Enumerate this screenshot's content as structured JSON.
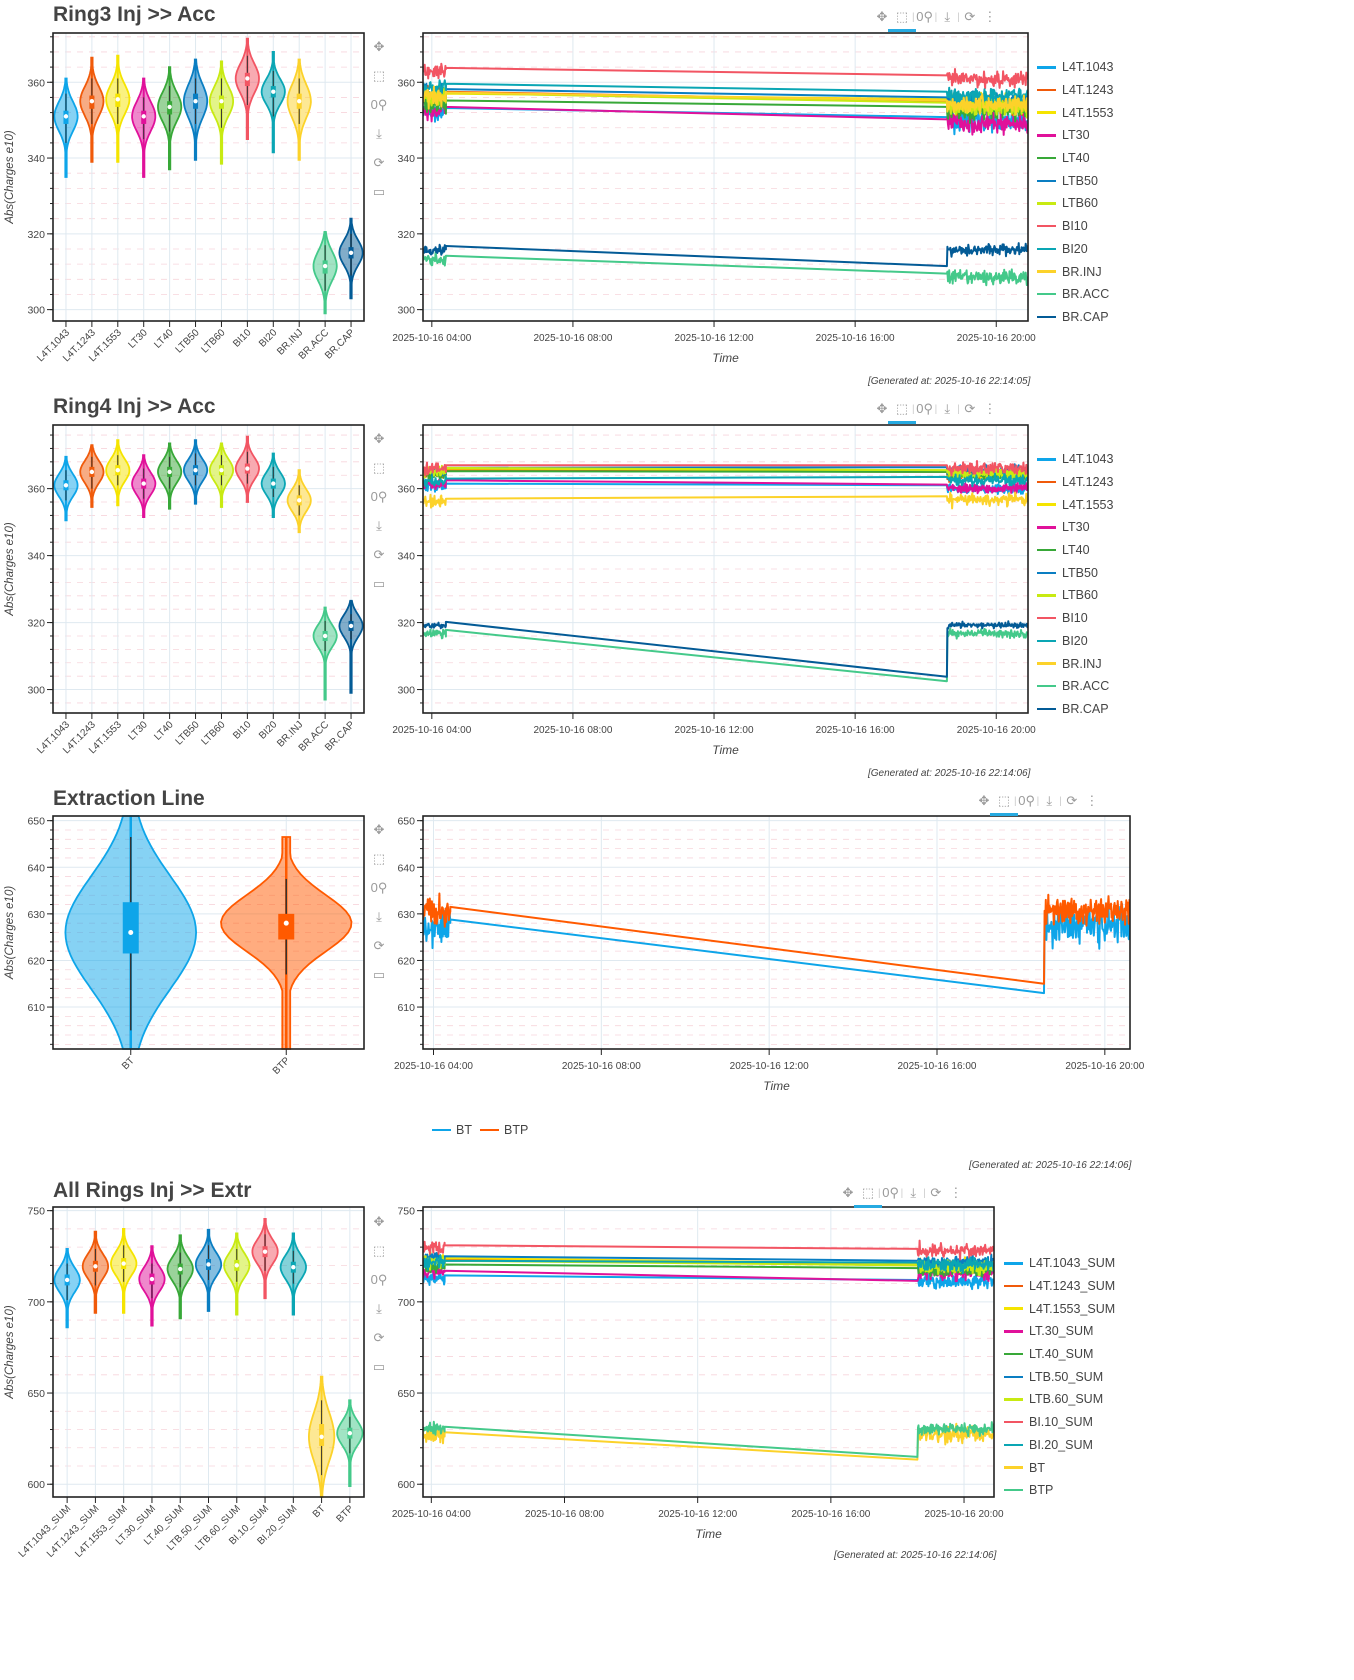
{
  "toolbar": {
    "icons": [
      "pan-icon",
      "box-zoom-icon",
      "wheel-zoom-icon",
      "save-icon",
      "reset-icon",
      "hover-icon"
    ],
    "glyphs": [
      "✥",
      "⬚",
      "0⚲",
      "⤓",
      "⟳",
      "☰"
    ]
  },
  "sections": [
    {
      "title": "Ring3 Inj >> Acc",
      "generated": "[Generated at: 2025-10-16 22:14:05]"
    },
    {
      "title": "Ring4 Inj >> Acc",
      "generated": "[Generated at: 2025-10-16 22:14:06]"
    },
    {
      "title": "Extraction Line",
      "generated": "[Generated at: 2025-10-16 22:14:06]"
    },
    {
      "title": "All Rings Inj >> Extr",
      "generated": "[Generated at: 2025-10-16 22:14:06]"
    }
  ],
  "chart_data": [
    {
      "id": "ring3-violin",
      "type": "violin",
      "title": "Ring3 Inj >> Acc",
      "ylabel": "Abs(Charges e10)",
      "xlabel": "",
      "ylim": [
        297,
        373
      ],
      "yticks": [
        300,
        320,
        340,
        360
      ],
      "grid": true,
      "categories": [
        "L4T.1043",
        "L4T.1243",
        "L4T.1553",
        "LT30",
        "LT40",
        "LTB50",
        "LTB60",
        "BI10",
        "BI20",
        "BR.INJ",
        "BR.ACC",
        "BR.CAP"
      ],
      "colors": [
        "#0ea5e9",
        "#f05a0a",
        "#f5e400",
        "#e0119a",
        "#38a838",
        "#0a7ec2",
        "#c8ea12",
        "#f25563",
        "#0aa6b4",
        "#fcd22a",
        "#44c98a",
        "#035b96"
      ],
      "median": [
        351,
        355,
        355.5,
        351,
        353.5,
        355,
        355,
        361,
        357.5,
        355,
        311.5,
        315
      ],
      "q1": [
        349,
        353,
        353.5,
        349,
        351.5,
        353,
        353,
        359,
        356,
        353,
        309.5,
        313.5
      ],
      "q3": [
        352.5,
        356.5,
        357,
        352.5,
        355,
        357,
        356.5,
        362.5,
        359,
        357,
        313,
        316.5
      ],
      "whisker_low": [
        344,
        349,
        349,
        345,
        347,
        349,
        348,
        354,
        351,
        349,
        305,
        309
      ],
      "whisker_high": [
        357,
        361,
        361,
        356,
        359,
        361,
        361,
        367,
        363,
        361,
        317,
        320
      ],
      "min": [
        335,
        339,
        339,
        335,
        337,
        339.5,
        338.5,
        345,
        341.5,
        339.5,
        299,
        303
      ],
      "max": [
        361,
        366.5,
        367,
        361,
        364,
        366,
        365.5,
        371.5,
        368,
        366,
        320.5,
        324
      ]
    },
    {
      "id": "ring3-line",
      "type": "line",
      "xlabel": "Time",
      "ylabel": "",
      "x_ticks": [
        "2025-10-16 04:00",
        "2025-10-16 08:00",
        "2025-10-16 12:00",
        "2025-10-16 16:00",
        "2025-10-16 20:00"
      ],
      "xlim_hours": [
        3.75,
        20.9
      ],
      "ylim": [
        297,
        373
      ],
      "yticks": [
        300,
        320,
        340,
        360
      ],
      "segments_hours": {
        "early": [
          3.75,
          4.4
        ],
        "late": [
          18.6,
          20.9
        ]
      },
      "series": [
        {
          "name": "L4T.1043",
          "color": "#0ea5e9",
          "start": 353.2,
          "end": 350.8,
          "noise": 4
        },
        {
          "name": "L4T.1243",
          "color": "#f05a0a",
          "start": 357.5,
          "end": 355,
          "noise": 4
        },
        {
          "name": "L4T.1553",
          "color": "#f5e400",
          "start": 357,
          "end": 355.5,
          "noise": 4
        },
        {
          "name": "LT30",
          "color": "#e0119a",
          "start": 353.5,
          "end": 350.2,
          "noise": 4.5
        },
        {
          "name": "LT40",
          "color": "#38a838",
          "start": 355.2,
          "end": 353.5,
          "noise": 4
        },
        {
          "name": "LTB50",
          "color": "#0a7ec2",
          "start": 358.2,
          "end": 356,
          "noise": 4
        },
        {
          "name": "LTB60",
          "color": "#c8ea12",
          "start": 357.2,
          "end": 354.6,
          "noise": 4
        },
        {
          "name": "BI10",
          "color": "#f25563",
          "start": 363.8,
          "end": 361.8,
          "noise": 3.5
        },
        {
          "name": "BI20",
          "color": "#0aa6b4",
          "start": 359.6,
          "end": 357.5,
          "noise": 3.5
        },
        {
          "name": "BR.INJ",
          "color": "#fcd22a",
          "start": 357.3,
          "end": 355.2,
          "noise": 4
        },
        {
          "name": "BR.ACC",
          "color": "#44c98a",
          "start": 314.2,
          "end": 309.5,
          "noise": 3
        },
        {
          "name": "BR.CAP",
          "color": "#035b96",
          "start": 316.8,
          "end": 311.5,
          "noise": 2.5
        }
      ]
    },
    {
      "id": "ring4-violin",
      "type": "violin",
      "title": "Ring4 Inj >> Acc",
      "ylabel": "Abs(Charges e10)",
      "ylim": [
        293,
        379
      ],
      "yticks": [
        300,
        320,
        340,
        360
      ],
      "grid": true,
      "categories": [
        "L4T.1043",
        "L4T.1243",
        "L4T.1553",
        "LT30",
        "LT40",
        "LTB50",
        "LTB60",
        "BI10",
        "BI20",
        "BR.INJ",
        "BR.ACC",
        "BR.CAP"
      ],
      "colors": [
        "#0ea5e9",
        "#f05a0a",
        "#f5e400",
        "#e0119a",
        "#38a838",
        "#0a7ec2",
        "#c8ea12",
        "#f25563",
        "#0aa6b4",
        "#fcd22a",
        "#44c98a",
        "#035b96"
      ],
      "median": [
        361,
        365,
        365.5,
        361.5,
        365,
        365.5,
        365.5,
        366,
        361.5,
        356.5,
        316,
        319
      ],
      "q1": [
        359.5,
        363.5,
        364,
        360,
        363.5,
        364,
        364,
        364.5,
        360,
        355,
        314.5,
        317.5
      ],
      "q3": [
        362.5,
        366.5,
        367,
        363,
        366.5,
        367,
        367,
        367.5,
        363,
        358,
        317.5,
        320.5
      ],
      "whisker_low": [
        356.5,
        360,
        361,
        357,
        360,
        361,
        361,
        361.5,
        357.5,
        352,
        311.5,
        315
      ],
      "whisker_high": [
        365.5,
        369.5,
        370,
        366,
        369.5,
        370.5,
        370,
        371,
        366.5,
        361,
        320.5,
        322.5
      ],
      "min": [
        350.5,
        354.5,
        355,
        351.5,
        354,
        355.5,
        354.5,
        356,
        351.5,
        347,
        297,
        299
      ],
      "max": [
        369.5,
        373,
        374.5,
        370,
        373.5,
        374.5,
        373.5,
        375.5,
        370.5,
        365.5,
        324.5,
        326.5
      ]
    },
    {
      "id": "ring4-line",
      "type": "line",
      "xlabel": "Time",
      "x_ticks": [
        "2025-10-16 04:00",
        "2025-10-16 08:00",
        "2025-10-16 12:00",
        "2025-10-16 16:00",
        "2025-10-16 20:00"
      ],
      "xlim_hours": [
        3.75,
        20.9
      ],
      "ylim": [
        293,
        379
      ],
      "yticks": [
        300,
        320,
        340,
        360
      ],
      "segments_hours": {
        "early": [
          3.75,
          4.4
        ],
        "late": [
          18.6,
          20.9
        ]
      },
      "series": [
        {
          "name": "L4T.1043",
          "color": "#0ea5e9",
          "start": 361.5,
          "end": 361,
          "noise": 2.5
        },
        {
          "name": "L4T.1243",
          "color": "#f05a0a",
          "start": 365.5,
          "end": 365,
          "noise": 2.5
        },
        {
          "name": "L4T.1553",
          "color": "#f5e400",
          "start": 366,
          "end": 365.5,
          "noise": 2.5
        },
        {
          "name": "LT30",
          "color": "#e0119a",
          "start": 362.5,
          "end": 361.2,
          "noise": 2.5
        },
        {
          "name": "LT40",
          "color": "#38a838",
          "start": 365.2,
          "end": 365,
          "noise": 2.5
        },
        {
          "name": "LTB50",
          "color": "#0a7ec2",
          "start": 366.2,
          "end": 366.4,
          "noise": 2.5
        },
        {
          "name": "LTB60",
          "color": "#c8ea12",
          "start": 366.2,
          "end": 365.5,
          "noise": 2.5
        },
        {
          "name": "BI10",
          "color": "#f25563",
          "start": 367,
          "end": 367,
          "noise": 3
        },
        {
          "name": "BI20",
          "color": "#0aa6b4",
          "start": 363,
          "end": 363.5,
          "noise": 2.5
        },
        {
          "name": "BR.INJ",
          "color": "#fcd22a",
          "start": 357,
          "end": 357.7,
          "noise": 3
        },
        {
          "name": "BR.ACC",
          "color": "#44c98a",
          "start": 317.8,
          "end": 302.5,
          "noise": 2
        },
        {
          "name": "BR.CAP",
          "color": "#035b96",
          "start": 320.2,
          "end": 303.8,
          "noise": 1.5
        }
      ]
    },
    {
      "id": "extraction-violin",
      "type": "violin",
      "title": "Extraction Line",
      "ylabel": "Abs(Charges e10)",
      "ylim": [
        601,
        651
      ],
      "yticks": [
        610,
        620,
        630,
        640,
        650
      ],
      "grid": true,
      "categories": [
        "BT",
        "BTP"
      ],
      "colors": [
        "#0ea5e9",
        "#ff5a00"
      ],
      "median": [
        626,
        628
      ],
      "q1": [
        621.5,
        624.5
      ],
      "q3": [
        632.5,
        630
      ],
      "whisker_low": [
        605,
        617
      ],
      "whisker_high": [
        646.5,
        637.5
      ],
      "min": [
        601,
        601
      ],
      "max": [
        651,
        646.5
      ]
    },
    {
      "id": "extraction-line",
      "type": "line",
      "xlabel": "Time",
      "x_ticks": [
        "2025-10-16 04:00",
        "2025-10-16 08:00",
        "2025-10-16 12:00",
        "2025-10-16 16:00",
        "2025-10-16 20:00"
      ],
      "xlim_hours": [
        3.75,
        20.6
      ],
      "ylim": [
        601,
        651
      ],
      "yticks": [
        610,
        620,
        630,
        640,
        650
      ],
      "legend": "bottom",
      "segments_hours": {
        "early": [
          3.75,
          4.4
        ],
        "late": [
          18.55,
          20.6
        ]
      },
      "series": [
        {
          "name": "BT",
          "color": "#0ea5e9",
          "start": 628.8,
          "end": 613,
          "noise": 7
        },
        {
          "name": "BTP",
          "color": "#ff5a00",
          "start": 631.5,
          "end": 615,
          "noise": 5
        }
      ]
    },
    {
      "id": "allrings-violin",
      "type": "violin",
      "title": "All Rings Inj >> Extr",
      "ylabel": "Abs(Charges e10)",
      "ylim": [
        593,
        752
      ],
      "yticks": [
        600,
        650,
        700,
        750
      ],
      "grid": true,
      "categories": [
        "L4T.1043_SUM",
        "L4T.1243_SUM",
        "L4T.1553_SUM",
        "LT.30_SUM",
        "LT.40_SUM",
        "LTB.50_SUM",
        "LTB.60_SUM",
        "BI.10_SUM",
        "BI.20_SUM",
        "BT",
        "BTP"
      ],
      "colors": [
        "#0ea5e9",
        "#f05a0a",
        "#f5e400",
        "#e0119a",
        "#38a838",
        "#0a7ec2",
        "#c8ea12",
        "#f25563",
        "#0aa6b4",
        "#fcd22a",
        "#44c98a"
      ],
      "median": [
        712,
        719.5,
        721,
        712.5,
        718,
        720.5,
        720,
        727.5,
        719,
        626,
        628
      ],
      "q1": [
        709,
        716.5,
        718,
        709.5,
        715,
        717.5,
        717,
        724.5,
        716,
        621,
        625
      ],
      "q3": [
        715,
        722.5,
        724,
        715.5,
        721,
        723.5,
        723,
        730.5,
        722,
        633,
        631
      ],
      "whisker_low": [
        701,
        709,
        711,
        702,
        708,
        712,
        711,
        717,
        710,
        605,
        617
      ],
      "whisker_high": [
        721,
        729,
        731,
        721,
        727,
        731,
        729,
        737,
        728,
        646,
        637
      ],
      "min": [
        686,
        694,
        694,
        687,
        691,
        695,
        693,
        702,
        693,
        593,
        599
      ],
      "max": [
        729,
        738.5,
        740,
        730.5,
        736.5,
        739.5,
        737.5,
        745.5,
        737.5,
        659,
        646
      ]
    },
    {
      "id": "allrings-line",
      "type": "line",
      "xlabel": "Time",
      "x_ticks": [
        "2025-10-16 04:00",
        "2025-10-16 08:00",
        "2025-10-16 12:00",
        "2025-10-16 16:00",
        "2025-10-16 20:00"
      ],
      "xlim_hours": [
        3.75,
        20.9
      ],
      "ylim": [
        593,
        752
      ],
      "yticks": [
        600,
        650,
        700,
        750
      ],
      "segments_hours": {
        "early": [
          3.75,
          4.4
        ],
        "late": [
          18.6,
          20.9
        ]
      },
      "series": [
        {
          "name": "L4T.1043_SUM",
          "color": "#0ea5e9",
          "start": 714.5,
          "end": 712,
          "noise": 6
        },
        {
          "name": "L4T.1243_SUM",
          "color": "#f05a0a",
          "start": 723.5,
          "end": 720,
          "noise": 6
        },
        {
          "name": "L4T.1553_SUM",
          "color": "#f5e400",
          "start": 724,
          "end": 721,
          "noise": 6
        },
        {
          "name": "LT.30_SUM",
          "color": "#e0119a",
          "start": 717,
          "end": 711.5,
          "noise": 7
        },
        {
          "name": "LT.40_SUM",
          "color": "#38a838",
          "start": 720.5,
          "end": 718.5,
          "noise": 6
        },
        {
          "name": "LTB.50_SUM",
          "color": "#0a7ec2",
          "start": 725,
          "end": 722.5,
          "noise": 6
        },
        {
          "name": "LTB.60_SUM",
          "color": "#c8ea12",
          "start": 722.5,
          "end": 720,
          "noise": 6
        },
        {
          "name": "BI.10_SUM",
          "color": "#f25563",
          "start": 731,
          "end": 729,
          "noise": 6
        },
        {
          "name": "BI.20_SUM",
          "color": "#0aa6b4",
          "start": 722.5,
          "end": 721.5,
          "noise": 6
        },
        {
          "name": "BT",
          "color": "#fcd22a",
          "start": 628.5,
          "end": 613.5,
          "noise": 8
        },
        {
          "name": "BTP",
          "color": "#44c98a",
          "start": 631.5,
          "end": 615,
          "noise": 5
        }
      ]
    }
  ]
}
